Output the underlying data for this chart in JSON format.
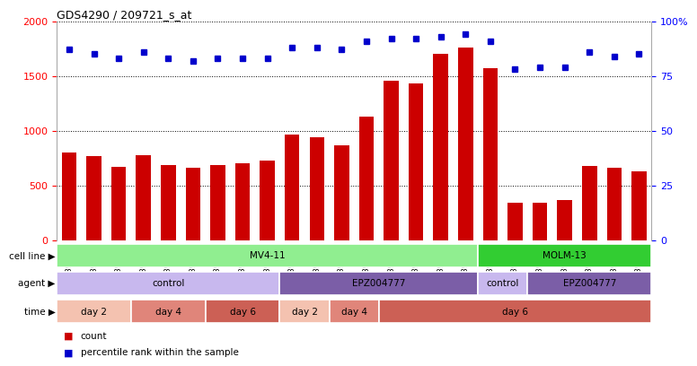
{
  "title": "GDS4290 / 209721_s_at",
  "samples": [
    "GSM739151",
    "GSM739152",
    "GSM739153",
    "GSM739157",
    "GSM739158",
    "GSM739159",
    "GSM739163",
    "GSM739164",
    "GSM739165",
    "GSM739148",
    "GSM739149",
    "GSM739150",
    "GSM739154",
    "GSM739155",
    "GSM739156",
    "GSM739160",
    "GSM739161",
    "GSM739162",
    "GSM739169",
    "GSM739170",
    "GSM739171",
    "GSM739166",
    "GSM739167",
    "GSM739168"
  ],
  "counts": [
    800,
    770,
    670,
    780,
    690,
    660,
    690,
    700,
    730,
    970,
    940,
    870,
    1130,
    1460,
    1430,
    1700,
    1760,
    1570,
    340,
    345,
    370,
    680,
    660,
    630
  ],
  "percentiles": [
    87,
    85,
    83,
    86,
    83,
    82,
    83,
    83,
    83,
    88,
    88,
    87,
    91,
    92,
    92,
    93,
    94,
    91,
    78,
    79,
    79,
    86,
    84,
    85
  ],
  "bar_color": "#cc0000",
  "dot_color": "#0000cc",
  "ylim_left": [
    0,
    2000
  ],
  "ylim_right": [
    0,
    100
  ],
  "yticks_left": [
    0,
    500,
    1000,
    1500,
    2000
  ],
  "yticks_right": [
    0,
    25,
    50,
    75,
    100
  ],
  "ytick_labels_right": [
    "0",
    "25",
    "50",
    "75",
    "100%"
  ],
  "grid_values": [
    500,
    1000,
    1500
  ],
  "cell_line_spans": [
    {
      "label": "MV4-11",
      "start": 0,
      "end": 17,
      "color": "#90EE90"
    },
    {
      "label": "MOLM-13",
      "start": 17,
      "end": 24,
      "color": "#32CD32"
    }
  ],
  "agent_spans": [
    {
      "label": "control",
      "start": 0,
      "end": 9,
      "color": "#c8b8ee"
    },
    {
      "label": "EPZ004777",
      "start": 9,
      "end": 17,
      "color": "#7b5ea7"
    },
    {
      "label": "control",
      "start": 17,
      "end": 19,
      "color": "#c8b8ee"
    },
    {
      "label": "EPZ004777",
      "start": 19,
      "end": 24,
      "color": "#7b5ea7"
    }
  ],
  "time_spans": [
    {
      "label": "day 2",
      "start": 0,
      "end": 3,
      "color": "#f4c2b0"
    },
    {
      "label": "day 4",
      "start": 3,
      "end": 6,
      "color": "#e0857a"
    },
    {
      "label": "day 6",
      "start": 6,
      "end": 9,
      "color": "#cc6055"
    },
    {
      "label": "day 2",
      "start": 9,
      "end": 11,
      "color": "#f4c2b0"
    },
    {
      "label": "day 4",
      "start": 11,
      "end": 13,
      "color": "#e0857a"
    },
    {
      "label": "day 6",
      "start": 13,
      "end": 24,
      "color": "#cc6055"
    }
  ],
  "bg_color": "#ffffff",
  "grid_color": "#000000"
}
